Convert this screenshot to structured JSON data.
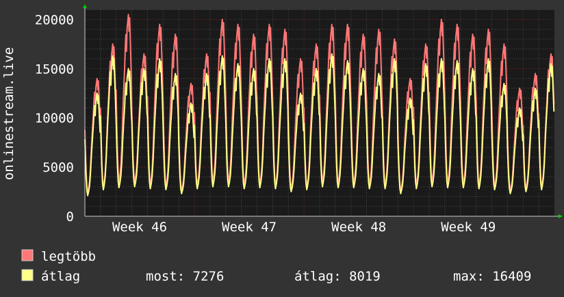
{
  "chart_data": {
    "type": "line",
    "ylabel": "onlinestream.live",
    "ylim": [
      0,
      21000
    ],
    "yticks": [
      0,
      5000,
      10000,
      15000,
      20000
    ],
    "xlim": [
      0,
      30
    ],
    "x_tick_labels": [
      {
        "x": 3.5,
        "label": "Week 46"
      },
      {
        "x": 10.5,
        "label": "Week 47"
      },
      {
        "x": 17.5,
        "label": "Week 48"
      },
      {
        "x": 24.5,
        "label": "Week 49"
      }
    ],
    "grid": true,
    "colors": {
      "background": "#333333",
      "plot_background": "#1a1a1a",
      "grid_minor": "#4a4a4a",
      "grid_major": "#6a2a2a",
      "max_series": "#ff7777",
      "avg_series": "#ffff88",
      "axis_arrow": "#00cc00"
    },
    "daily_peaks": {
      "max": [
        14000,
        17500,
        20500,
        16500,
        19500,
        18500,
        13500,
        16500,
        20000,
        19500,
        18500,
        19500,
        19000,
        16000,
        17500,
        19500,
        19500,
        18500,
        19000,
        18000,
        14000,
        17500,
        20000,
        19500,
        18500,
        19000,
        17500,
        13000,
        14500,
        16500
      ],
      "avg": [
        12500,
        16300,
        15000,
        15000,
        16000,
        14500,
        11500,
        14500,
        16300,
        15500,
        15000,
        16000,
        16000,
        12500,
        15000,
        16500,
        15800,
        15000,
        14500,
        16000,
        12000,
        15500,
        16000,
        15800,
        15000,
        16000,
        13500,
        11000,
        13000,
        15500
      ]
    },
    "daily_troughs": {
      "max": [
        2400,
        3000,
        3500,
        3500,
        3200,
        3000,
        2600,
        3200,
        3500,
        3500,
        3200,
        3200,
        3100,
        2800,
        3000,
        3500,
        3300,
        3300,
        3200,
        3200,
        2600,
        3200,
        3500,
        3400,
        3300,
        3200,
        3000,
        2600,
        2800,
        3000
      ],
      "avg": [
        2100,
        2700,
        2900,
        3000,
        2800,
        2700,
        2300,
        2800,
        3000,
        3000,
        2800,
        2900,
        2800,
        2500,
        2700,
        3000,
        2900,
        2900,
        2800,
        2800,
        2300,
        2800,
        3000,
        2900,
        2900,
        2800,
        2700,
        2300,
        2500,
        2700
      ]
    },
    "series": [
      {
        "name": "legtöbb",
        "color": "#ff7777"
      },
      {
        "name": "átlag",
        "color": "#ffff88"
      }
    ]
  },
  "legend": {
    "max_label": "legtöbb",
    "avg_label": "átlag",
    "current": "most: 7276",
    "average": "átlag: 8019",
    "maximum": "max: 16409"
  }
}
